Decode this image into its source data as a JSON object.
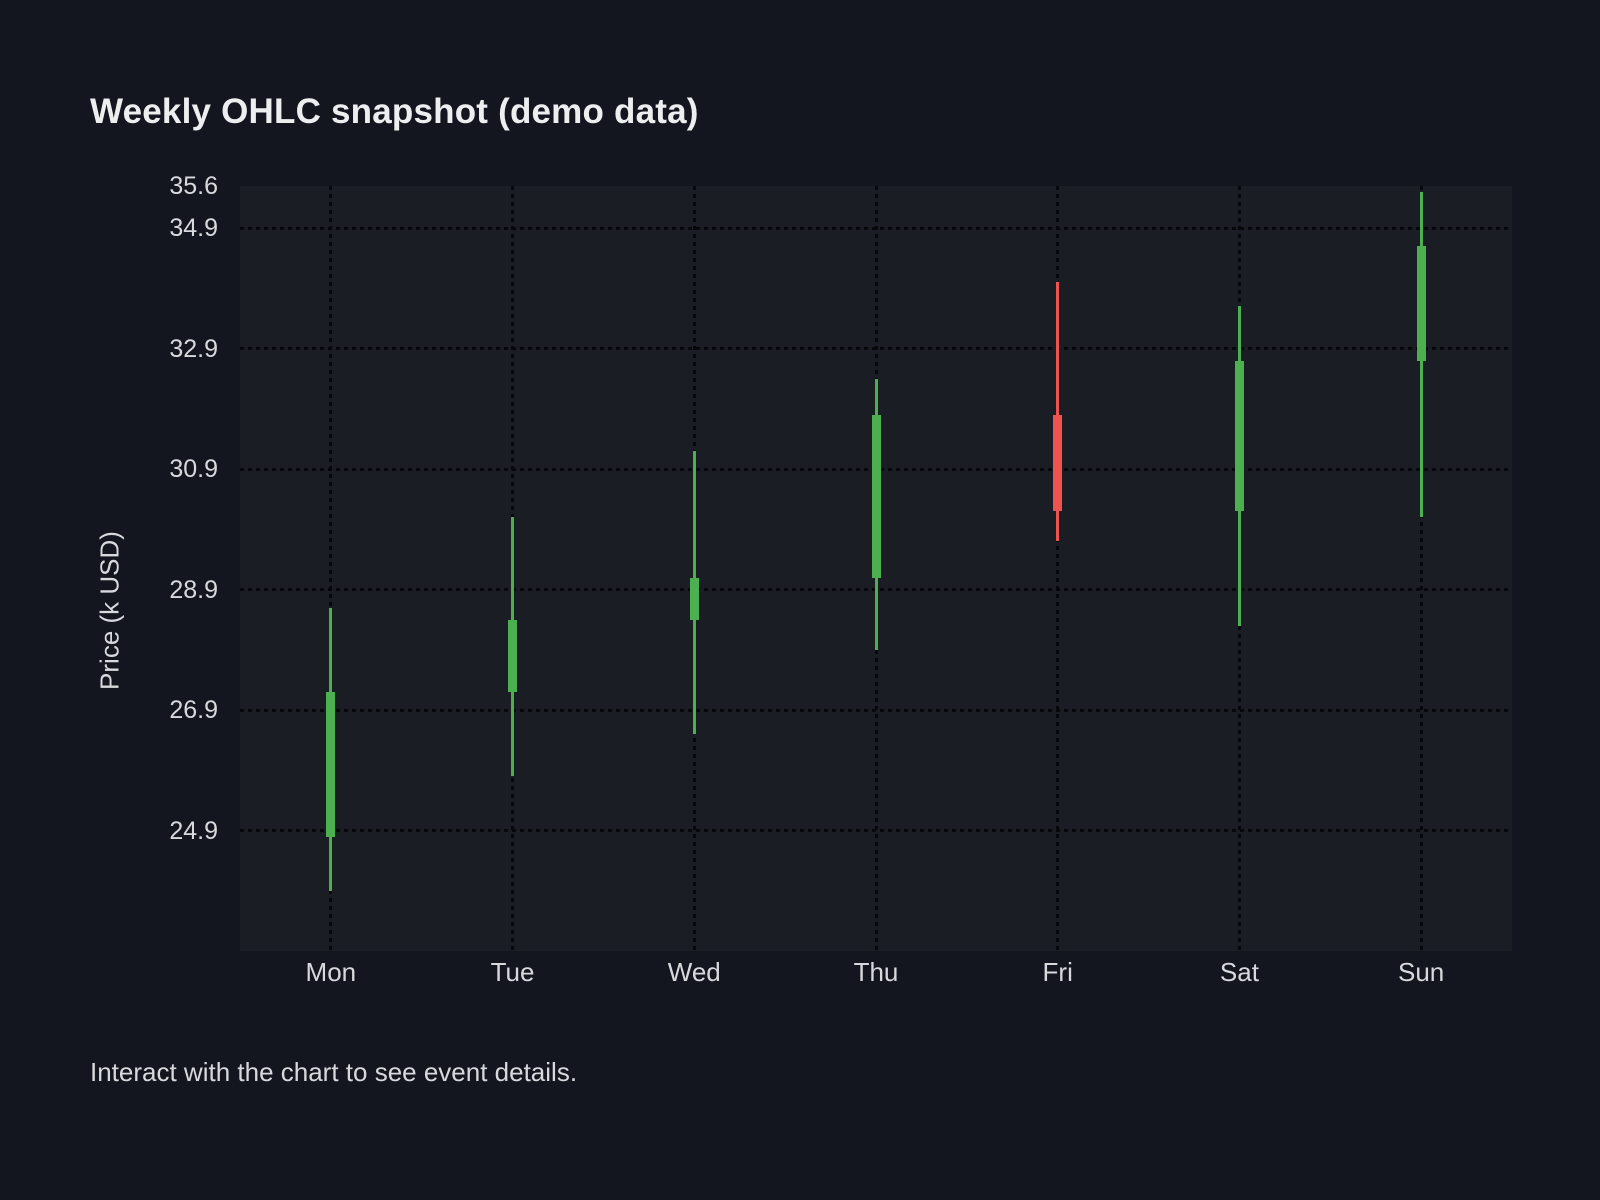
{
  "page": {
    "background": "#13161e",
    "caption": "Interact with the chart to see event details."
  },
  "chart": {
    "plot_background": "#1a1d24",
    "grid_color": "#07080c",
    "up_color": "#4caf50",
    "down_color": "#ef5350",
    "title_color": "#eceef0",
    "label_color": "#d7d9dc"
  },
  "chart_data": {
    "type": "candlestick",
    "title": "Weekly OHLC snapshot (demo data)",
    "xlabel": "",
    "ylabel": "Price (k USD)",
    "categories": [
      "Mon",
      "Tue",
      "Wed",
      "Thu",
      "Fri",
      "Sat",
      "Sun"
    ],
    "series": [
      {
        "name": "Weekly OHLC",
        "points": [
          {
            "day": "Mon",
            "open": 24.8,
            "high": 28.6,
            "low": 23.9,
            "close": 27.2,
            "direction": "up"
          },
          {
            "day": "Tue",
            "open": 27.2,
            "high": 30.1,
            "low": 25.8,
            "close": 28.4,
            "direction": "up"
          },
          {
            "day": "Wed",
            "open": 28.4,
            "high": 31.2,
            "low": 26.5,
            "close": 29.1,
            "direction": "up"
          },
          {
            "day": "Thu",
            "open": 29.1,
            "high": 32.4,
            "low": 27.9,
            "close": 31.8,
            "direction": "up"
          },
          {
            "day": "Fri",
            "open": 31.8,
            "high": 34.0,
            "low": 29.7,
            "close": 30.2,
            "direction": "down"
          },
          {
            "day": "Sat",
            "open": 30.2,
            "high": 33.6,
            "low": 28.3,
            "close": 32.7,
            "direction": "up"
          },
          {
            "day": "Sun",
            "open": 32.7,
            "high": 35.5,
            "low": 30.1,
            "close": 34.6,
            "direction": "up"
          }
        ]
      }
    ],
    "y_ticks": [
      "35.6",
      "34.9",
      "32.9",
      "30.9",
      "28.9",
      "26.9",
      "24.9"
    ],
    "ylim": [
      22.9,
      35.6
    ],
    "grid": "dotted",
    "legend": "none"
  }
}
